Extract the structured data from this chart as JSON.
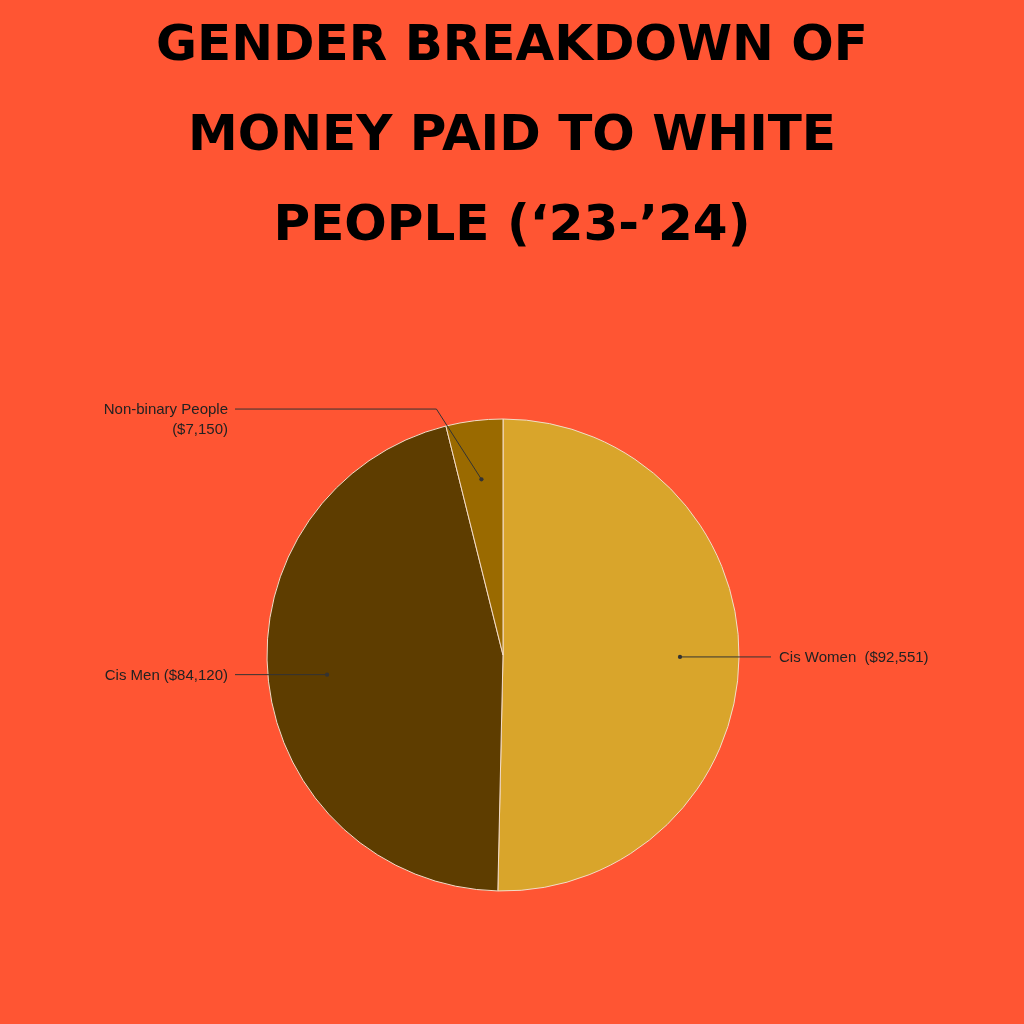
{
  "chart_data": {
    "type": "pie",
    "title": "GENDER BREAKDOWN OF MONEY PAID TO WHITE PEOPLE (‘23-’24)",
    "categories": [
      "Cis Women",
      "Cis Men",
      "Non-binary People"
    ],
    "values": [
      92551,
      84120,
      7150
    ],
    "value_labels": [
      "($92,551)",
      "($84,120)",
      "($7,150)"
    ],
    "colors": [
      "#d9a52b",
      "#5e3d00",
      "#9a6a00"
    ]
  }
}
